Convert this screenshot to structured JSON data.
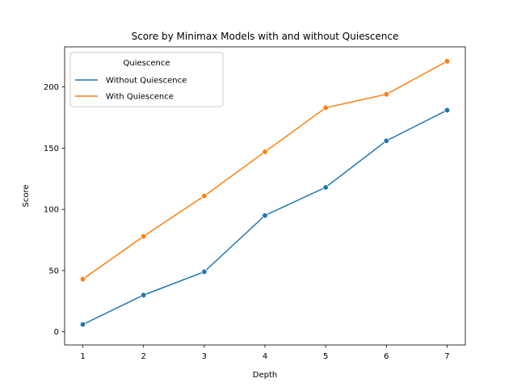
{
  "chart_data": {
    "type": "line",
    "title": "Score by Minimax Models with and without Quiescence",
    "xlabel": "Depth",
    "ylabel": "Score",
    "x": [
      1,
      2,
      3,
      4,
      5,
      6,
      7
    ],
    "xlim": [
      0.7,
      7.3
    ],
    "ylim": [
      -10.75,
      232.75
    ],
    "xticks": [
      1,
      2,
      3,
      4,
      5,
      6,
      7
    ],
    "yticks": [
      0,
      50,
      100,
      150,
      200
    ],
    "grid": false,
    "legend": {
      "title": "Quiescence",
      "placement": "top-left"
    },
    "series": [
      {
        "name": "Without Quiescence",
        "color": "#1f77b4",
        "marker": "circle",
        "values": [
          6,
          30,
          49,
          95,
          118,
          156,
          181
        ]
      },
      {
        "name": "With Quiescence",
        "color": "#ff7f0e",
        "marker": "circle",
        "values": [
          43,
          78,
          111,
          147,
          183,
          194,
          221
        ]
      }
    ]
  }
}
